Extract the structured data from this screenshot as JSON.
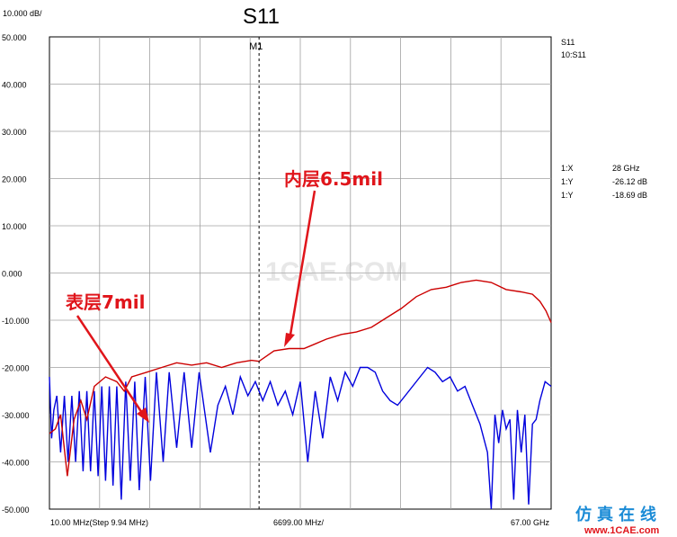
{
  "chart_data": {
    "type": "line",
    "title": "S11",
    "scale_label": "10.000 dB/",
    "ylim": [
      -50,
      50
    ],
    "y_ticks": [
      "50.000",
      "40.000",
      "30.000",
      "20.000",
      "10.000",
      "0.000",
      "-10.000",
      "-20.000",
      "-30.000",
      "-40.000",
      "-50.000"
    ],
    "x_range_ghz": [
      0.01,
      67
    ],
    "x_labels": {
      "start": "10.00 MHz(Step 9.94 MHz)",
      "center": "6699.00 MHz/",
      "stop": "67.00 GHz"
    },
    "marker": {
      "label": "M1",
      "x_ghz": 28
    },
    "series": [
      {
        "name": "S11",
        "color": "#0000dd",
        "points": [
          [
            0.01,
            -22
          ],
          [
            0.3,
            -35
          ],
          [
            0.6,
            -29
          ],
          [
            1.0,
            -26
          ],
          [
            1.5,
            -38
          ],
          [
            2.0,
            -26
          ],
          [
            2.5,
            -40
          ],
          [
            3.0,
            -26
          ],
          [
            3.5,
            -40
          ],
          [
            4.0,
            -25
          ],
          [
            4.5,
            -42
          ],
          [
            5.0,
            -25
          ],
          [
            5.5,
            -42
          ],
          [
            6.0,
            -25
          ],
          [
            6.5,
            -43
          ],
          [
            7.0,
            -24
          ],
          [
            7.5,
            -44
          ],
          [
            8.0,
            -24
          ],
          [
            8.5,
            -45
          ],
          [
            9.0,
            -24
          ],
          [
            9.6,
            -48
          ],
          [
            10.2,
            -23
          ],
          [
            10.8,
            -44
          ],
          [
            11.4,
            -23
          ],
          [
            12.0,
            -46
          ],
          [
            12.8,
            -22
          ],
          [
            13.5,
            -44
          ],
          [
            14.3,
            -21
          ],
          [
            15.2,
            -40
          ],
          [
            16.0,
            -21
          ],
          [
            17.0,
            -37
          ],
          [
            18.0,
            -21
          ],
          [
            19.0,
            -37
          ],
          [
            20.0,
            -21
          ],
          [
            21.5,
            -38
          ],
          [
            22.5,
            -28
          ],
          [
            23.5,
            -24
          ],
          [
            24.5,
            -30
          ],
          [
            25.5,
            -22
          ],
          [
            26.5,
            -26
          ],
          [
            27.5,
            -23
          ],
          [
            28.5,
            -27
          ],
          [
            29.5,
            -23
          ],
          [
            30.5,
            -28
          ],
          [
            31.5,
            -25
          ],
          [
            32.5,
            -30
          ],
          [
            33.5,
            -23
          ],
          [
            34.5,
            -40
          ],
          [
            35.5,
            -25
          ],
          [
            36.5,
            -35
          ],
          [
            37.5,
            -22
          ],
          [
            38.5,
            -27
          ],
          [
            39.5,
            -21
          ],
          [
            40.5,
            -24
          ],
          [
            41.5,
            -20
          ],
          [
            42.5,
            -20
          ],
          [
            43.5,
            -21
          ],
          [
            44.5,
            -25
          ],
          [
            45.5,
            -27
          ],
          [
            46.5,
            -28
          ],
          [
            47.5,
            -26
          ],
          [
            48.5,
            -24
          ],
          [
            49.5,
            -22
          ],
          [
            50.5,
            -20
          ],
          [
            51.5,
            -21
          ],
          [
            52.5,
            -23
          ],
          [
            53.5,
            -22
          ],
          [
            54.5,
            -25
          ],
          [
            55.5,
            -24
          ],
          [
            56.5,
            -28
          ],
          [
            57.5,
            -32
          ],
          [
            58.5,
            -38
          ],
          [
            59.0,
            -50
          ],
          [
            59.5,
            -30
          ],
          [
            60.0,
            -36
          ],
          [
            60.5,
            -29
          ],
          [
            61.0,
            -33
          ],
          [
            61.5,
            -31
          ],
          [
            62.0,
            -48
          ],
          [
            62.5,
            -29
          ],
          [
            63.0,
            -38
          ],
          [
            63.5,
            -30
          ],
          [
            64.0,
            -49
          ],
          [
            64.5,
            -32
          ],
          [
            65.0,
            -31
          ],
          [
            65.5,
            -27
          ],
          [
            66.2,
            -23
          ],
          [
            67.0,
            -24
          ]
        ]
      },
      {
        "name": "10:S11",
        "color": "#cc0000",
        "points": [
          [
            0.01,
            -34
          ],
          [
            0.8,
            -33
          ],
          [
            1.5,
            -30
          ],
          [
            2.4,
            -43
          ],
          [
            3.3,
            -31
          ],
          [
            4.2,
            -27
          ],
          [
            5.0,
            -31
          ],
          [
            6.0,
            -24
          ],
          [
            7.5,
            -22
          ],
          [
            9.0,
            -23
          ],
          [
            10.0,
            -25
          ],
          [
            11.0,
            -22
          ],
          [
            13.0,
            -21
          ],
          [
            15.0,
            -20
          ],
          [
            17.0,
            -19
          ],
          [
            19.0,
            -19.5
          ],
          [
            21.0,
            -19
          ],
          [
            23.0,
            -20
          ],
          [
            25.0,
            -19
          ],
          [
            27.0,
            -18.5
          ],
          [
            28.0,
            -18.7
          ],
          [
            30.0,
            -16.5
          ],
          [
            32.0,
            -16
          ],
          [
            34.0,
            -16
          ],
          [
            35.5,
            -15
          ],
          [
            37.0,
            -14
          ],
          [
            39.0,
            -13
          ],
          [
            41.0,
            -12.5
          ],
          [
            43.0,
            -11.5
          ],
          [
            45.0,
            -9.5
          ],
          [
            47.0,
            -7.5
          ],
          [
            49.0,
            -5
          ],
          [
            51.0,
            -3.5
          ],
          [
            53.0,
            -3
          ],
          [
            55.0,
            -2
          ],
          [
            57.0,
            -1.5
          ],
          [
            59.0,
            -2
          ],
          [
            61.0,
            -3.5
          ],
          [
            63.0,
            -4
          ],
          [
            64.5,
            -4.5
          ],
          [
            65.5,
            -6
          ],
          [
            66.3,
            -8
          ],
          [
            67.0,
            -10.5
          ]
        ]
      }
    ],
    "marker_readout": [
      {
        "label": "1:X",
        "value": "28 GHz",
        "color": "#000000"
      },
      {
        "label": "1:Y",
        "value": "-26.12 dB",
        "color": "#0000dd"
      },
      {
        "label": "1:Y",
        "value": "-18.69 dB",
        "color": "#cc0000"
      }
    ],
    "annotations": [
      {
        "text": "内层6.5mil",
        "color": "#e0151b"
      },
      {
        "text": "表层7mil",
        "color": "#e0151b"
      }
    ]
  },
  "watermark": "1CAE.COM",
  "logo": {
    "cn": "仿真在线",
    "url": "www.1CAE.com"
  }
}
